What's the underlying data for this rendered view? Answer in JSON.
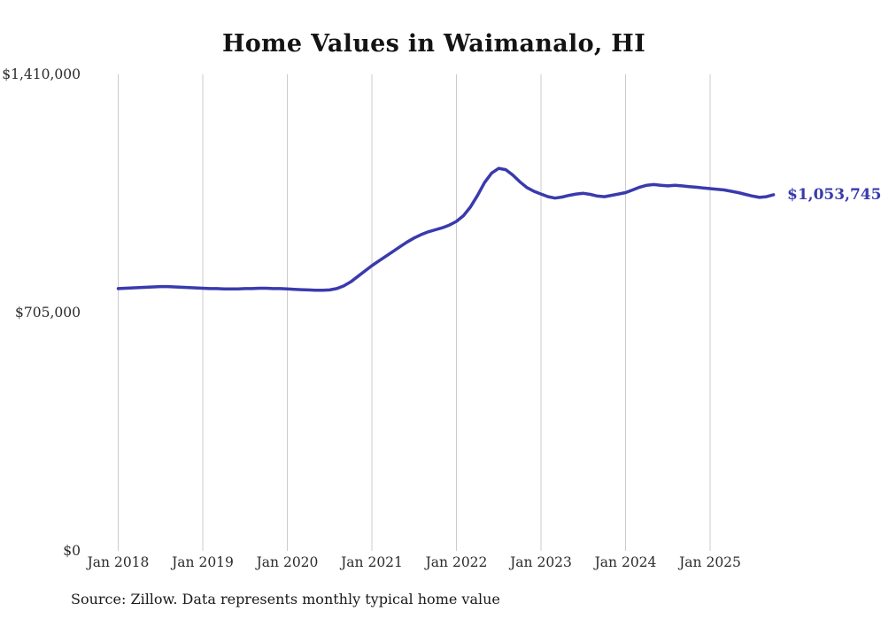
{
  "title": "Home Values in Waimanalo, HI",
  "source_note": "Source: Zillow. Data represents monthly typical home value",
  "end_label": "$1,053,745",
  "colors": {
    "line": "#3a3aae",
    "grid": "#cbcbcb",
    "title_text": "#141414",
    "axis_text": "#2b2b2b"
  },
  "chart_data": {
    "type": "line",
    "title": "Home Values in Waimanalo, HI",
    "xlabel": "",
    "ylabel": "",
    "ylim": [
      0,
      1410000
    ],
    "grid": "vertical",
    "legend": "none",
    "x_start": "2018-01",
    "x_end": "2025-10",
    "x_frequency": "monthly",
    "x_tick_labels": [
      "Jan 2018",
      "Jan 2019",
      "Jan 2020",
      "Jan 2021",
      "Jan 2022",
      "Jan 2023",
      "Jan 2024",
      "Jan 2025"
    ],
    "y_ticks": [
      {
        "label": "$0",
        "value": 0
      },
      {
        "label": "$705,000",
        "value": 705000
      },
      {
        "label": "$1,410,000",
        "value": 1410000
      }
    ],
    "last_value": 1053745,
    "last_value_label": "$1,053,745",
    "series": [
      {
        "name": "Monthly typical home value",
        "values": [
          776000,
          777000,
          778000,
          779000,
          780000,
          781000,
          782000,
          782000,
          781000,
          780000,
          779000,
          778000,
          777000,
          776000,
          776000,
          775000,
          775000,
          775000,
          776000,
          776000,
          777000,
          777000,
          776000,
          776000,
          775000,
          774000,
          773000,
          772000,
          771000,
          771000,
          772000,
          776000,
          784000,
          796000,
          812000,
          828000,
          844000,
          858000,
          872000,
          886000,
          900000,
          914000,
          926000,
          936000,
          944000,
          950000,
          956000,
          964000,
          975000,
          992000,
          1018000,
          1052000,
          1090000,
          1118000,
          1132000,
          1128000,
          1112000,
          1092000,
          1075000,
          1064000,
          1056000,
          1048000,
          1044000,
          1047000,
          1052000,
          1056000,
          1058000,
          1055000,
          1050000,
          1048000,
          1052000,
          1056000,
          1060000,
          1068000,
          1076000,
          1082000,
          1084000,
          1082000,
          1080000,
          1082000,
          1080000,
          1078000,
          1076000,
          1074000,
          1072000,
          1070000,
          1068000,
          1064000,
          1060000,
          1055000,
          1050000,
          1046000,
          1048000,
          1053745
        ]
      }
    ]
  }
}
